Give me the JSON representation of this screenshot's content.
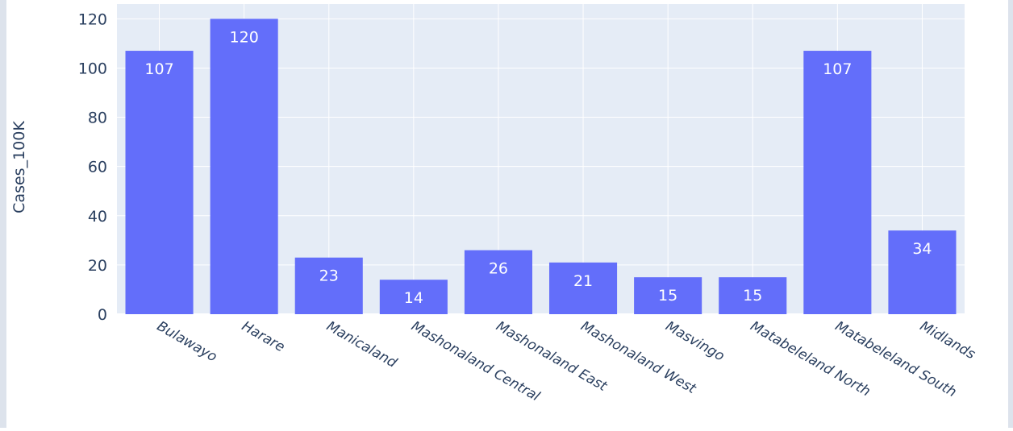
{
  "chart_data": {
    "type": "bar",
    "title": "",
    "xlabel": "",
    "ylabel": "Cases_100K",
    "categories": [
      "Bulawayo",
      "Harare",
      "Manicaland",
      "Mashonaland Central",
      "Mashonaland East",
      "Mashonaland West",
      "Masvingo",
      "Matabeleland North",
      "Matabeleland South",
      "Midlands"
    ],
    "values": [
      107,
      120,
      23,
      14,
      26,
      21,
      15,
      15,
      107,
      34
    ],
    "data_labels": [
      "107",
      "120",
      "23",
      "14",
      "26",
      "21",
      "15",
      "15",
      "107",
      "34"
    ],
    "ylim": [
      0,
      126
    ],
    "yticks": [
      0,
      20,
      40,
      60,
      80,
      100,
      120
    ],
    "grid": true,
    "legend": "none",
    "colors": {
      "bar": "#636efa",
      "plot_bg": "#e5ecf6",
      "grid": "#ffffff",
      "text": "#2a3f5f",
      "bar_label": "#ffffff"
    }
  }
}
